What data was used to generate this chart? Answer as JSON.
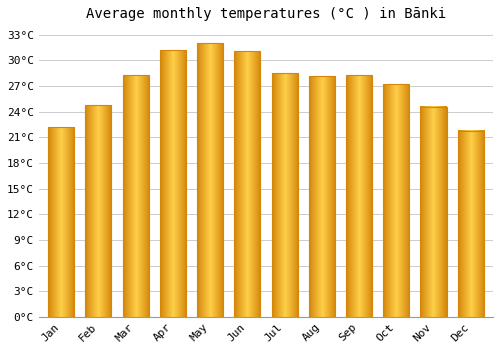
{
  "title": "Average monthly temperatures (°C ) in Bānki",
  "months": [
    "Jan",
    "Feb",
    "Mar",
    "Apr",
    "May",
    "Jun",
    "Jul",
    "Aug",
    "Sep",
    "Oct",
    "Nov",
    "Dec"
  ],
  "temperatures": [
    22.2,
    24.8,
    28.3,
    31.2,
    32.0,
    31.1,
    28.5,
    28.2,
    28.3,
    27.2,
    24.6,
    21.8
  ],
  "bar_color_edge": "#D4860A",
  "bar_color_center": "#FFD04A",
  "bar_color_main": "#FFA500",
  "ylim": [
    0,
    34
  ],
  "yticks": [
    0,
    3,
    6,
    9,
    12,
    15,
    18,
    21,
    24,
    27,
    30,
    33
  ],
  "ytick_labels": [
    "0°C",
    "3°C",
    "6°C",
    "9°C",
    "12°C",
    "15°C",
    "18°C",
    "21°C",
    "24°C",
    "27°C",
    "30°C",
    "33°C"
  ],
  "background_color": "#ffffff",
  "grid_color": "#cccccc",
  "title_fontsize": 10,
  "tick_fontsize": 8,
  "font_family": "monospace"
}
